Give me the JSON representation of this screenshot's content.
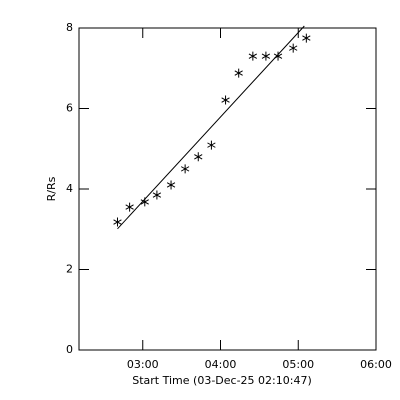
{
  "chart_data": {
    "type": "scatter",
    "xlabel": "Start Time (03-Dec-25 02:10:47)",
    "ylabel": "R/Rs",
    "x": [
      2.675,
      2.831,
      3.026,
      3.182,
      3.364,
      3.545,
      3.714,
      3.883,
      4.065,
      4.234,
      4.416,
      4.584,
      4.74,
      4.935,
      5.104
    ],
    "values": [
      3.18,
      3.55,
      3.68,
      3.85,
      4.1,
      4.5,
      4.8,
      5.09,
      6.21,
      6.88,
      7.3,
      7.3,
      7.3,
      7.5,
      7.75
    ],
    "fit": {
      "x": [
        2.675,
        5.078
      ],
      "values": [
        3.01,
        8.05
      ]
    },
    "color": "#000000",
    "xlim": [
      2.18,
      6.0
    ],
    "xticks": [
      {
        "value": 3,
        "label": "03:00"
      },
      {
        "value": 4,
        "label": "04:00"
      },
      {
        "value": 5,
        "label": "05:00"
      },
      {
        "value": 6,
        "label": "06:00"
      }
    ],
    "ylim": [
      0,
      8
    ],
    "yticks": [
      0,
      2,
      4,
      6,
      8
    ]
  }
}
